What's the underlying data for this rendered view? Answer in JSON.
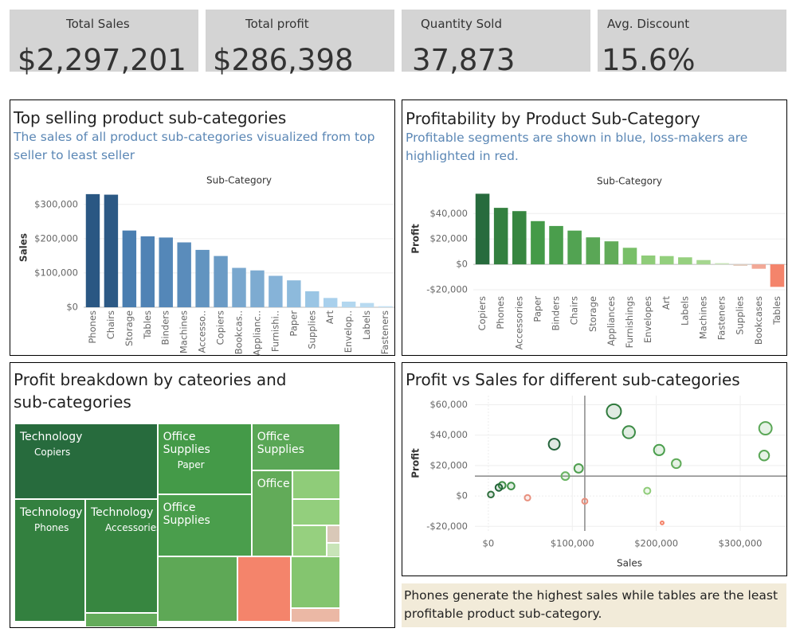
{
  "kpis": [
    {
      "label": "Total Sales",
      "value": "$2,297,201"
    },
    {
      "label": "Total profit",
      "value": "$286,398"
    },
    {
      "label": "Quantity Sold",
      "value": "37,873"
    },
    {
      "label": "Avg. Discount",
      "value": "15.6%"
    }
  ],
  "chart_data": [
    {
      "type": "bar",
      "title": "Top selling product sub-categories",
      "subtitle": "The sales of all product sub-categories visualized from top seller to least seller",
      "x_label": "Sub-Category",
      "y_label": "Sales",
      "categories": [
        "Phones",
        "Chairs",
        "Storage",
        "Tables",
        "Binders",
        "Machines",
        "Accesso..",
        "Copiers",
        "Bookcas..",
        "Applianc..",
        "Furnishi..",
        "Paper",
        "Supplies",
        "Art",
        "Envelop..",
        "Labels",
        "Fasteners"
      ],
      "values": [
        330007,
        328449,
        223844,
        206966,
        203413,
        189239,
        167380,
        149528,
        114880,
        107532,
        91705,
        78479,
        46674,
        27119,
        16476,
        12486,
        3024
      ],
      "colors": [
        "#2a5783",
        "#2c5985",
        "#4a7eb0",
        "#5083b5",
        "#5487b8",
        "#5a8cbb",
        "#6294c0",
        "#6b9bc5",
        "#79a7ce",
        "#7dabd1",
        "#86b3d8",
        "#8dbadc",
        "#9ac5e4",
        "#a9d0ec",
        "#b3d7ef",
        "#b8daf0",
        "#c3e0f3"
      ],
      "ylim": [
        0,
        346000
      ],
      "yticks": [
        {
          "value": 0,
          "label": "$0"
        },
        {
          "value": 100000,
          "label": "$100,000"
        },
        {
          "value": 200000,
          "label": "$200,000"
        },
        {
          "value": 300000,
          "label": "$300,000"
        }
      ],
      "grid": true
    },
    {
      "type": "bar",
      "title": "Profitability by Product Sub-Category",
      "subtitle": "Profitable segments are shown in blue, loss-makers are highlighted in red.",
      "x_label": "Sub-Category",
      "y_label": "Profit",
      "categories": [
        "Copiers",
        "Phones",
        "Accessories",
        "Paper",
        "Binders",
        "Chairs",
        "Storage",
        "Appliances",
        "Furnishings",
        "Envelopes",
        "Art",
        "Labels",
        "Machines",
        "Fasteners",
        "Supplies",
        "Bookcases",
        "Tables"
      ],
      "values": [
        55618,
        44516,
        41937,
        34054,
        30222,
        26590,
        21279,
        18138,
        13059,
        6964,
        6528,
        5546,
        3385,
        950,
        -1189,
        -3473,
        -17725
      ],
      "colors": [
        "#276b3d",
        "#33803f",
        "#378640",
        "#449a48",
        "#4a9e4c",
        "#52a352",
        "#5aa756",
        "#62ab59",
        "#78bf68",
        "#8fcc79",
        "#93cf7d",
        "#96d07f",
        "#a5d68f",
        "#c8e4b8",
        "#e3cdbf",
        "#f2a896",
        "#f4846b"
      ],
      "ylim": [
        -22500,
        59000
      ],
      "yticks": [
        {
          "value": -20000,
          "label": "-$20,000"
        },
        {
          "value": 0,
          "label": "$0"
        },
        {
          "value": 20000,
          "label": "$20,000"
        },
        {
          "value": 40000,
          "label": "$40,000"
        }
      ],
      "grid": true
    },
    {
      "type": "treemap",
      "title": "Profit breakdown by cateories and sub-categories",
      "groups": [
        {
          "items": [
            {
              "category_label": "Technology",
              "label": "Copiers",
              "value": 55618,
              "color": "#276b3d"
            },
            {
              "category_label": "Technology",
              "label": "Phones",
              "value": 44516,
              "color": "#33803f"
            },
            {
              "category_label": "Technology",
              "label": "Accessories",
              "value": 41937,
              "color": "#378640"
            },
            {
              "value": 3385,
              "color": "#63ab5a"
            }
          ]
        },
        {
          "items": [
            {
              "category_label": "Office Supplies",
              "label": "Paper",
              "value": 34054,
              "color": "#449a48"
            },
            {
              "category_label": "Office Supplies",
              "value": 30222,
              "color": "#4a9e4c"
            },
            {
              "category_label": "Office Supplies",
              "value": 21279,
              "color": "#5aa756"
            },
            {
              "category_label": "Office",
              "value": 18138,
              "color": "#62ab59"
            },
            {
              "value": 6964,
              "color": "#8fcc79"
            },
            {
              "value": 6528,
              "color": "#93cf7d"
            },
            {
              "value": 5546,
              "color": "#96d07f"
            },
            {
              "value": -1189,
              "color": "#d9c8b8"
            },
            {
              "value": 950,
              "color": "#c8e4b8"
            }
          ]
        },
        {
          "items": [
            {
              "value": 26590,
              "color": "#5ea856"
            },
            {
              "value": -17725,
              "color": "#f4846b"
            },
            {
              "value": 13059,
              "color": "#84c56f"
            },
            {
              "value": -3473,
              "color": "#ebb8a5"
            }
          ]
        }
      ]
    },
    {
      "type": "scatter",
      "title": "Profit vs Sales for different sub-categories",
      "x_label": "Sales",
      "y_label": "Profit",
      "x": [
        149528,
        330007,
        167380,
        78479,
        203413,
        328449,
        223844,
        107532,
        91705,
        16476,
        27119,
        12486,
        189239,
        3024,
        46674,
        114880,
        206966
      ],
      "values": [
        55618,
        44516,
        41937,
        34054,
        30222,
        26590,
        21279,
        18138,
        13059,
        6964,
        6528,
        5546,
        3385,
        950,
        -1189,
        -3473,
        -17725
      ],
      "colors": [
        "#2f7a3c",
        "#5aa756",
        "#3c8c45",
        "#23633a",
        "#4a9e4c",
        "#5aa756",
        "#60ab59",
        "#4e9e4e",
        "#6ab463",
        "#3d8f46",
        "#3d8f46",
        "#23633a",
        "#8fcc79",
        "#2c6d3b",
        "#e8907e",
        "#e8907e",
        "#f4846b"
      ],
      "xlim": [
        -16000,
        355000
      ],
      "ylim": [
        -23000,
        66000
      ],
      "xticks": [
        {
          "value": 0,
          "label": "$0"
        },
        {
          "value": 100000,
          "label": "$100,000"
        },
        {
          "value": 200000,
          "label": "$200,000"
        },
        {
          "value": 300000,
          "label": "$300,000"
        }
      ],
      "yticks": [
        {
          "value": -20000,
          "label": "-$20,000"
        },
        {
          "value": 0,
          "label": "$0"
        },
        {
          "value": 20000,
          "label": "$20,000"
        },
        {
          "value": 40000,
          "label": "$40,000"
        },
        {
          "value": 60000,
          "label": "$60,000"
        }
      ],
      "reference_lines": {
        "x": 114880,
        "y": 13059
      },
      "grid": true
    }
  ],
  "note": "Phones generate the highest sales while tables are the least profitable product sub-category."
}
